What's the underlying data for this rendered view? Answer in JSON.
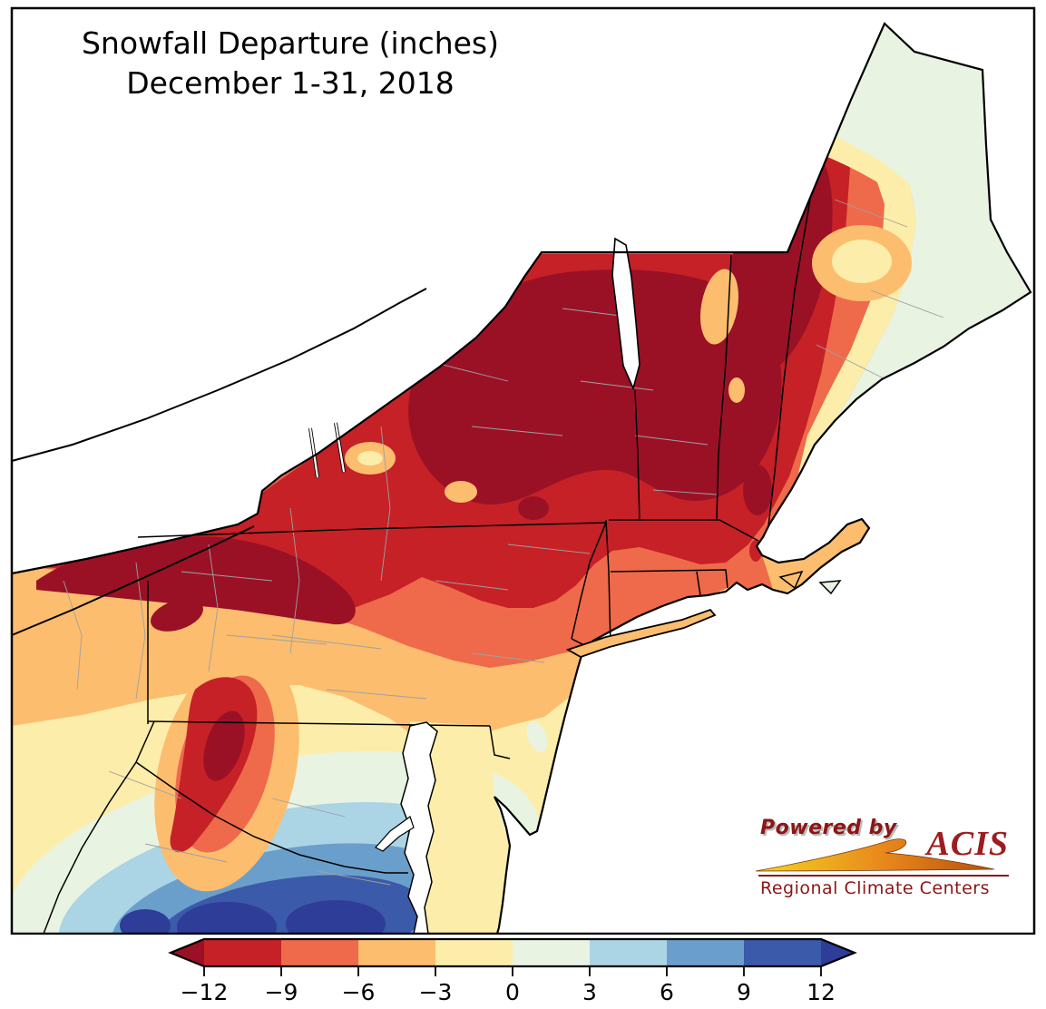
{
  "title": {
    "line1": "Snowfall Departure (inches)",
    "line2": "December 1-31, 2018"
  },
  "logo": {
    "powered_by": "Powered by",
    "brand": "ACIS",
    "tagline": "Regional Climate Centers"
  },
  "colorbar": {
    "tick_labels": [
      "−12",
      "−9",
      "−6",
      "−3",
      "0",
      "3",
      "6",
      "9",
      "12"
    ],
    "bin_colors": [
      "#c52127",
      "#ee6a4b",
      "#fcbd6f",
      "#fcedaa",
      "#e9f3e2",
      "#abd4e5",
      "#6b9fcb",
      "#3b5aa9"
    ],
    "arrow_left_color": "#9a1126",
    "arrow_right_color": "#2e3d97",
    "outline_color": "#000000"
  },
  "map_colors": {
    "below_minus12": "#9a1126",
    "minus12_minus9": "#c52127",
    "minus9_minus6": "#ee6a4b",
    "minus6_minus3": "#fcbd6f",
    "minus3_0": "#fcedaa",
    "zero_3": "#e9f3e2",
    "three_6": "#abd4e5",
    "six_9": "#6b9fcb",
    "nine_12": "#3b5aa9",
    "above_12": "#2e3d97",
    "water": "#ffffff",
    "state_border": "#000000",
    "county_border": "#a0a0a0"
  }
}
